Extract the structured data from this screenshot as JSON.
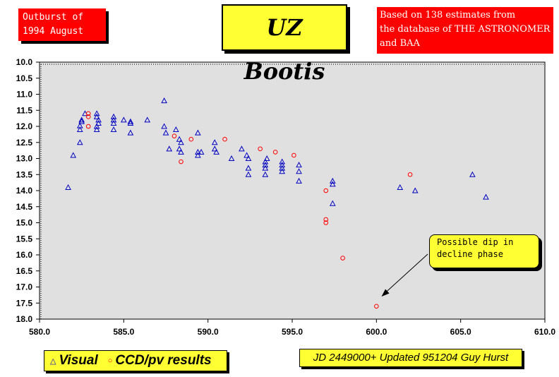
{
  "header": {
    "outburst_line1": "Outburst of",
    "outburst_line2": "1994 August",
    "title": "UZ Bootis",
    "source_line1": "Based on 138 estimates from",
    "source_line2": "the database of THE ASTRONOMER",
    "source_line3": "and BAA"
  },
  "legend": {
    "visual_symbol": "△",
    "visual_label": "Visual",
    "ccd_symbol": "○",
    "ccd_label": "CCD/pv results"
  },
  "footer": {
    "text": "JD 2449000+ Updated 951204 Guy Hurst"
  },
  "annotation": {
    "line1": "Possible dip in",
    "line2": "decline phase"
  },
  "colors": {
    "visual": "#0000c0",
    "ccd": "#ff0000",
    "plot_bg": "#e0e0e0",
    "box_yellow": "#ffff33",
    "box_red": "#ff0000"
  },
  "chart_data": {
    "type": "scatter",
    "xlim": [
      580.0,
      610.0
    ],
    "ylim": [
      10.0,
      18.0
    ],
    "y_inverted": true,
    "grid": false,
    "x_ticks": [
      "580.0",
      "585.0",
      "590.0",
      "595.0",
      "600.0",
      "605.0",
      "610.0"
    ],
    "y_ticks": [
      "10.0",
      "10.5",
      "11.0",
      "11.5",
      "12.0",
      "12.5",
      "13.0",
      "13.5",
      "14.0",
      "14.5",
      "15.0",
      "15.5",
      "16.0",
      "16.5",
      "17.0",
      "17.5",
      "18.0"
    ],
    "annotation_target": [
      600.3,
      17.3
    ],
    "series": [
      {
        "name": "Visual",
        "marker": "triangle",
        "points": [
          [
            581.7,
            13.9
          ],
          [
            582.0,
            12.9
          ],
          [
            582.4,
            12.5
          ],
          [
            582.4,
            12.1
          ],
          [
            582.4,
            11.98
          ],
          [
            582.5,
            11.8
          ],
          [
            582.5,
            11.85
          ],
          [
            582.7,
            11.6
          ],
          [
            583.4,
            11.6
          ],
          [
            583.4,
            11.7
          ],
          [
            583.5,
            11.8
          ],
          [
            583.5,
            11.9
          ],
          [
            583.4,
            12.0
          ],
          [
            583.4,
            12.1
          ],
          [
            584.4,
            11.7
          ],
          [
            584.4,
            11.8
          ],
          [
            584.4,
            11.9
          ],
          [
            584.4,
            12.1
          ],
          [
            585.0,
            11.8
          ],
          [
            585.4,
            11.9
          ],
          [
            585.4,
            12.2
          ],
          [
            585.4,
            11.85
          ],
          [
            586.4,
            11.8
          ],
          [
            587.4,
            11.2
          ],
          [
            587.4,
            12.0
          ],
          [
            587.5,
            12.2
          ],
          [
            587.7,
            12.7
          ],
          [
            588.1,
            12.1
          ],
          [
            588.3,
            12.4
          ],
          [
            588.4,
            12.5
          ],
          [
            588.3,
            12.7
          ],
          [
            588.4,
            12.8
          ],
          [
            589.4,
            12.2
          ],
          [
            589.4,
            12.8
          ],
          [
            589.4,
            12.9
          ],
          [
            589.6,
            12.8
          ],
          [
            590.4,
            12.5
          ],
          [
            590.4,
            12.7
          ],
          [
            590.5,
            12.8
          ],
          [
            591.4,
            13.0
          ],
          [
            592.0,
            12.7
          ],
          [
            592.3,
            12.9
          ],
          [
            592.4,
            13.0
          ],
          [
            592.4,
            13.3
          ],
          [
            592.4,
            13.5
          ],
          [
            593.5,
            13.0
          ],
          [
            593.4,
            13.1
          ],
          [
            593.4,
            13.2
          ],
          [
            593.4,
            13.3
          ],
          [
            593.4,
            13.5
          ],
          [
            594.4,
            13.1
          ],
          [
            594.4,
            13.2
          ],
          [
            594.4,
            13.3
          ],
          [
            594.4,
            13.4
          ],
          [
            595.4,
            13.2
          ],
          [
            595.4,
            13.4
          ],
          [
            595.4,
            13.7
          ],
          [
            597.4,
            13.7
          ],
          [
            597.4,
            13.8
          ],
          [
            597.4,
            14.4
          ],
          [
            601.4,
            13.9
          ],
          [
            602.3,
            14.0
          ],
          [
            605.7,
            13.5
          ],
          [
            606.5,
            14.2
          ]
        ]
      },
      {
        "name": "CCD/pv results",
        "marker": "circle",
        "points": [
          [
            582.9,
            11.6
          ],
          [
            582.9,
            11.7
          ],
          [
            582.9,
            12.0
          ],
          [
            588.0,
            12.3
          ],
          [
            588.4,
            13.1
          ],
          [
            589.0,
            12.4
          ],
          [
            591.0,
            12.4
          ],
          [
            593.1,
            12.7
          ],
          [
            594.0,
            12.8
          ],
          [
            595.1,
            12.9
          ],
          [
            597.0,
            14.0
          ],
          [
            597.0,
            14.9
          ],
          [
            597.0,
            15.0
          ],
          [
            598.0,
            16.1
          ],
          [
            600.0,
            17.6
          ],
          [
            602.0,
            13.5
          ]
        ]
      }
    ]
  }
}
